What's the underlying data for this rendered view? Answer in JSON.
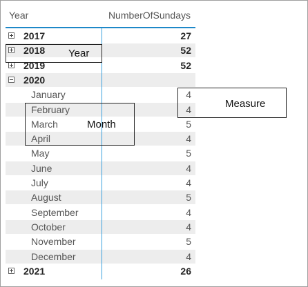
{
  "header": {
    "col_year": "Year",
    "col_measure": "NumberOfSundays"
  },
  "rows": [
    {
      "label": "2017",
      "value": "27",
      "kind": "year",
      "expanded": false
    },
    {
      "label": "2018",
      "value": "52",
      "kind": "year",
      "expanded": false
    },
    {
      "label": "2019",
      "value": "52",
      "kind": "year",
      "expanded": false
    },
    {
      "label": "2020",
      "value": "",
      "kind": "year",
      "expanded": true
    },
    {
      "label": "January",
      "value": "4",
      "kind": "month"
    },
    {
      "label": "February",
      "value": "4",
      "kind": "month"
    },
    {
      "label": "March",
      "value": "5",
      "kind": "month"
    },
    {
      "label": "April",
      "value": "4",
      "kind": "month"
    },
    {
      "label": "May",
      "value": "5",
      "kind": "month"
    },
    {
      "label": "June",
      "value": "4",
      "kind": "month"
    },
    {
      "label": "July",
      "value": "4",
      "kind": "month"
    },
    {
      "label": "August",
      "value": "5",
      "kind": "month"
    },
    {
      "label": "September",
      "value": "4",
      "kind": "month"
    },
    {
      "label": "October",
      "value": "4",
      "kind": "month"
    },
    {
      "label": "November",
      "value": "5",
      "kind": "month"
    },
    {
      "label": "December",
      "value": "4",
      "kind": "month"
    },
    {
      "label": "2021",
      "value": "26",
      "kind": "year",
      "expanded": false
    }
  ],
  "annotations": {
    "year": "Year",
    "month": "Month",
    "measure": "Measure"
  },
  "colors": {
    "accent": "#1e88c8",
    "alt_row": "#ededed"
  }
}
